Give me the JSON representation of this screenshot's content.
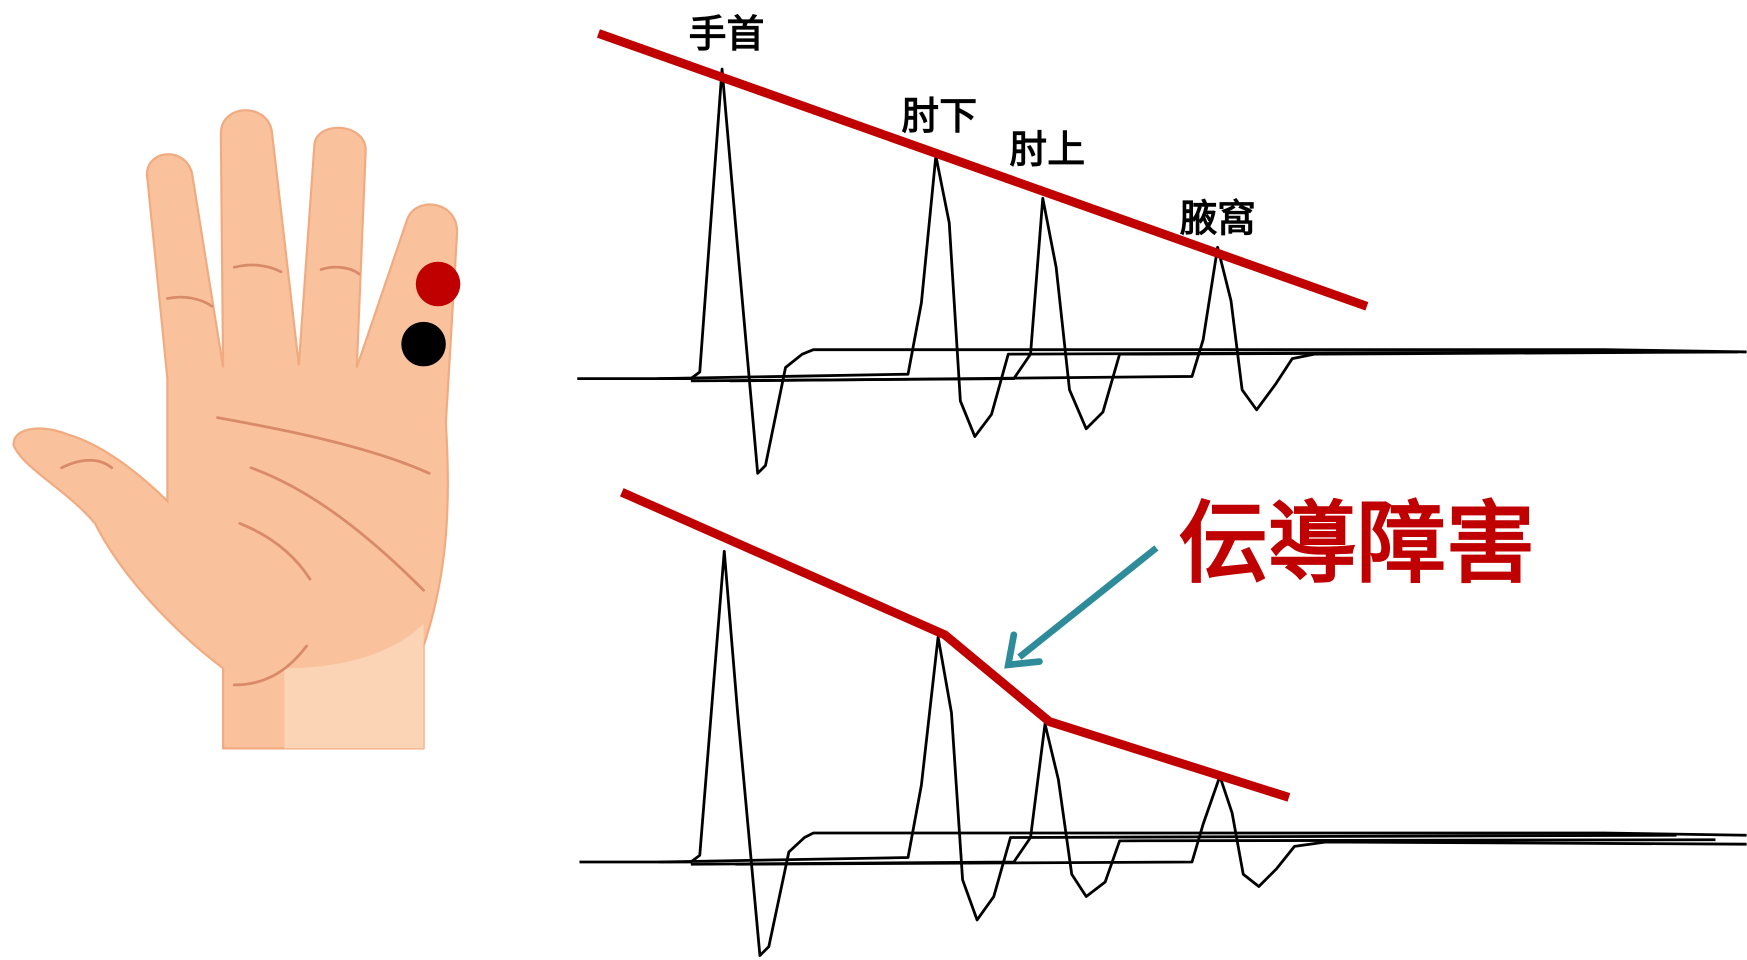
{
  "trace_labels": [
    "手首",
    "肘下",
    "肘上",
    "腋窩"
  ],
  "annotation": "伝導障害"
}
